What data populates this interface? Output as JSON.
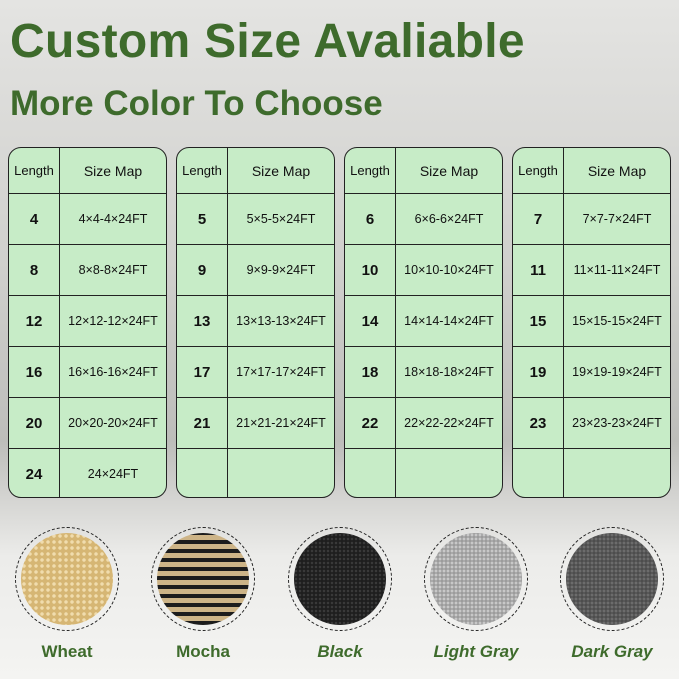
{
  "title": "Custom Size Avaliable",
  "subtitle": "More Color To Choose",
  "table_headers": {
    "length": "Length",
    "size_map": "Size Map"
  },
  "tables": [
    [
      [
        "4",
        "4×4-4×24FT"
      ],
      [
        "8",
        "8×8-8×24FT"
      ],
      [
        "12",
        "12×12-12×24FT"
      ],
      [
        "16",
        "16×16-16×24FT"
      ],
      [
        "20",
        "20×20-20×24FT"
      ],
      [
        "24",
        "24×24FT"
      ]
    ],
    [
      [
        "5",
        "5×5-5×24FT"
      ],
      [
        "9",
        "9×9-9×24FT"
      ],
      [
        "13",
        "13×13-13×24FT"
      ],
      [
        "17",
        "17×17-17×24FT"
      ],
      [
        "21",
        "21×21-21×24FT"
      ],
      [
        "",
        ""
      ]
    ],
    [
      [
        "6",
        "6×6-6×24FT"
      ],
      [
        "10",
        "10×10-10×24FT"
      ],
      [
        "14",
        "14×14-14×24FT"
      ],
      [
        "18",
        "18×18-18×24FT"
      ],
      [
        "22",
        "22×22-22×24FT"
      ],
      [
        "",
        ""
      ]
    ],
    [
      [
        "7",
        "7×7-7×24FT"
      ],
      [
        "11",
        "11×11-11×24FT"
      ],
      [
        "15",
        "15×15-15×24FT"
      ],
      [
        "19",
        "19×19-19×24FT"
      ],
      [
        "23",
        "23×23-23×24FT"
      ],
      [
        "",
        ""
      ]
    ]
  ],
  "colors": [
    {
      "name": "Wheat",
      "swatch": "#d9bb7c",
      "italic": false
    },
    {
      "name": "Mocha",
      "swatch": "#8a7650",
      "italic": false
    },
    {
      "name": "Black",
      "swatch": "#2a2a2a",
      "italic": true
    },
    {
      "name": "Light Gray",
      "swatch": "#a9a9a9",
      "italic": true
    },
    {
      "name": "Dark Gray",
      "swatch": "#5b5b5b",
      "italic": true
    }
  ],
  "accent": "#3e6b2c",
  "table_bg": "#c7ecc7"
}
